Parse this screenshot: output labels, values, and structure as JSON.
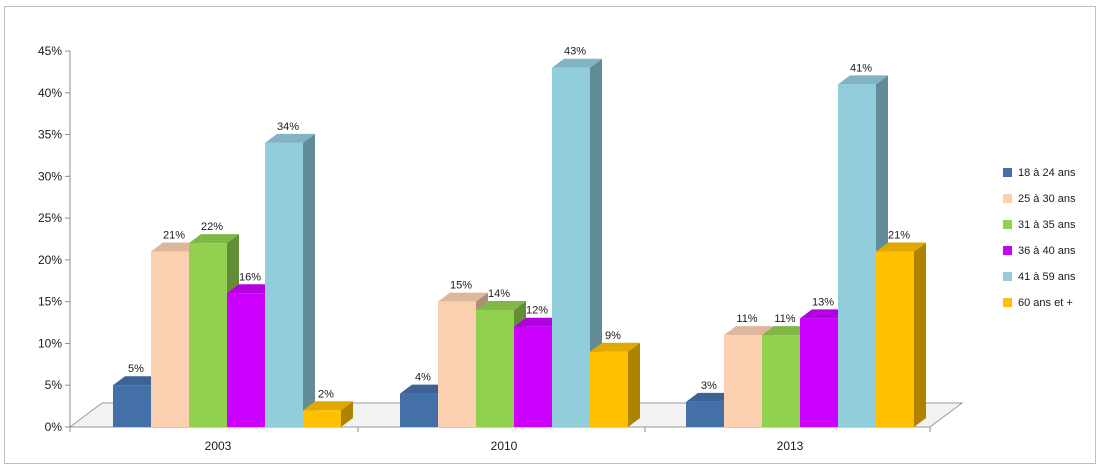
{
  "chart_data": {
    "type": "bar",
    "categories": [
      "2003",
      "2010",
      "2013"
    ],
    "series": [
      {
        "name": "18 à 24 ans",
        "values": [
          5,
          4,
          3
        ],
        "color": "#4470A8"
      },
      {
        "name": "25 à 30 ans",
        "values": [
          21,
          15,
          11
        ],
        "color": "#FBD0B0"
      },
      {
        "name": "31 à 35 ans",
        "values": [
          22,
          14,
          11
        ],
        "color": "#92D050"
      },
      {
        "name": "36 à 40 ans",
        "values": [
          16,
          12,
          13
        ],
        "color": "#CC00FF"
      },
      {
        "name": "41 à 59 ans",
        "values": [
          34,
          43,
          41
        ],
        "color": "#92CDDC"
      },
      {
        "name": "60 ans et +",
        "values": [
          2,
          9,
          21
        ],
        "color": "#FFC000"
      }
    ],
    "data_labels": [
      [
        "5%",
        "4%",
        "3%"
      ],
      [
        "21%",
        "15%",
        "11%"
      ],
      [
        "22%",
        "14%",
        "11%"
      ],
      [
        "16%",
        "12%",
        "13%"
      ],
      [
        "34%",
        "43%",
        "41%"
      ],
      [
        "2%",
        "9%",
        "21%"
      ]
    ],
    "y_ticks": [
      "0%",
      "5%",
      "10%",
      "15%",
      "20%",
      "25%",
      "30%",
      "35%",
      "40%",
      "45%"
    ],
    "ylim": [
      0,
      45
    ],
    "y_unit": "%",
    "title": "",
    "xlabel": "",
    "ylabel": "",
    "legend_position": "right",
    "style": "3d-clustered-column",
    "grid": false
  }
}
